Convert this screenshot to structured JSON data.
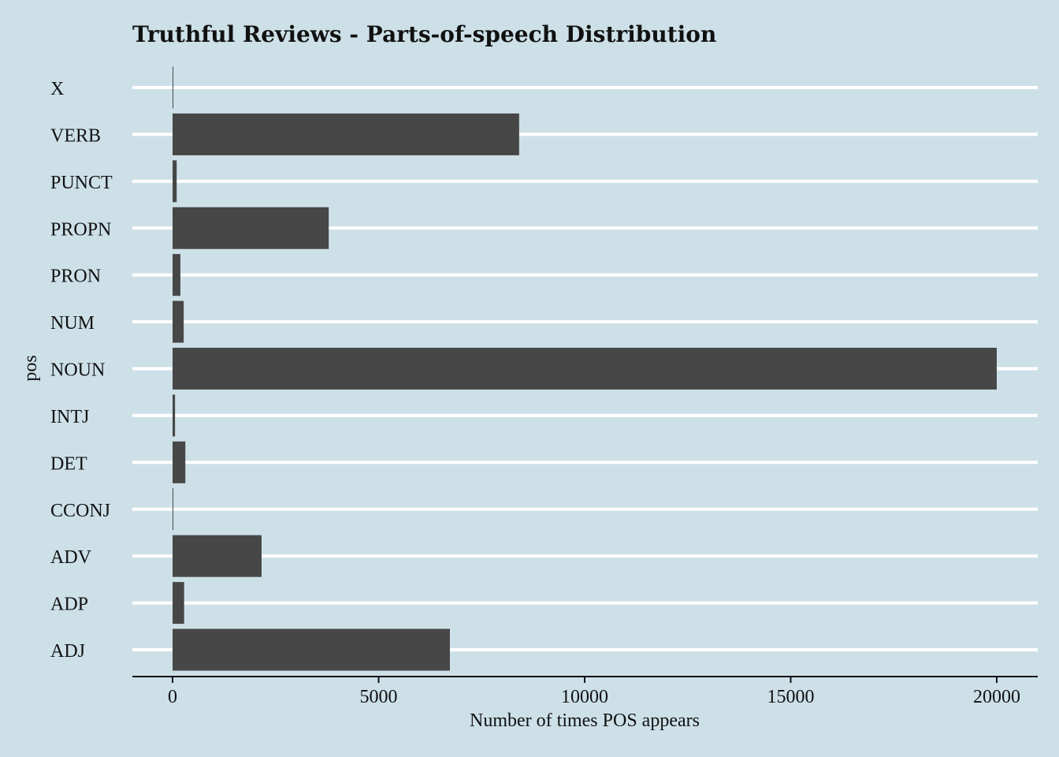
{
  "chart_data": {
    "type": "bar",
    "orientation": "horizontal",
    "title": "Truthful Reviews - Parts-of-speech Distribution",
    "xlabel": "Number of times POS appears",
    "ylabel": "pos",
    "categories": [
      "ADJ",
      "ADP",
      "ADV",
      "CCONJ",
      "DET",
      "INTJ",
      "NOUN",
      "NUM",
      "PRON",
      "PROPN",
      "PUNCT",
      "VERB",
      "X"
    ],
    "values": [
      6730,
      280,
      2160,
      10,
      310,
      60,
      20000,
      270,
      190,
      3790,
      100,
      8410,
      10
    ],
    "x_ticks": [
      0,
      5000,
      10000,
      15000,
      20000
    ],
    "x_tick_labels": [
      "0",
      "5000",
      "10000",
      "15000",
      "20000"
    ],
    "xlim": [
      -1000,
      21000
    ],
    "grid": "horizontal major lines only",
    "legend": "none",
    "colors": {
      "background": "#cde0e8",
      "bar": "#474747",
      "grid": "#ffffff",
      "axis": "#111111"
    }
  }
}
